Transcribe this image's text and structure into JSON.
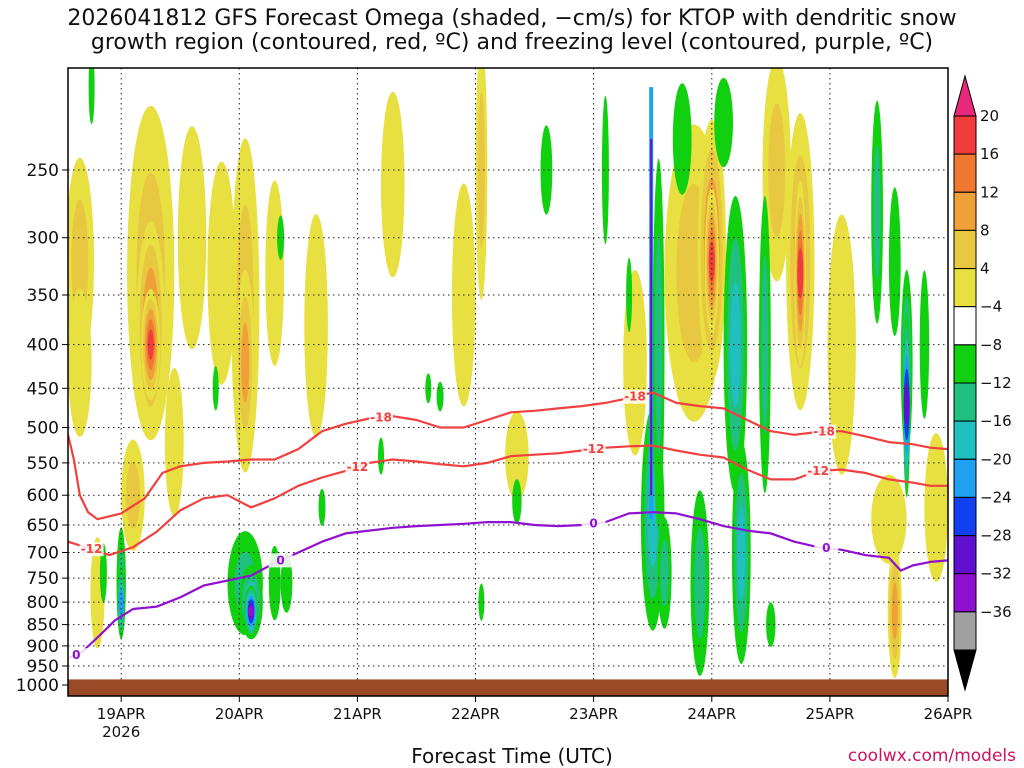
{
  "chart_data": {
    "type": "time-height contour",
    "title_line1": "2026041812 GFS Forecast Omega (shaded, −cm/s) for KTOP with dendritic snow",
    "title_line2": "growth region (contoured, red, ºC) and freezing level (contoured, purple, ºC)",
    "xlabel": "Forecast Time (UTC)",
    "credit": "coolwx.com/models",
    "x_range_days": [
      0.55,
      8.0
    ],
    "y_range_hpa": [
      190,
      1030
    ],
    "y_ticks": [
      "250",
      "300",
      "350",
      "400",
      "450",
      "500",
      "550",
      "600",
      "650",
      "700",
      "750",
      "800",
      "850",
      "900",
      "950",
      "1000"
    ],
    "x_ticks": [
      {
        "label": "19APR",
        "sub": "2026",
        "day": 1
      },
      {
        "label": "20APR",
        "sub": "",
        "day": 2
      },
      {
        "label": "21APR",
        "sub": "",
        "day": 3
      },
      {
        "label": "22APR",
        "sub": "",
        "day": 4
      },
      {
        "label": "23APR",
        "sub": "",
        "day": 5
      },
      {
        "label": "24APR",
        "sub": "",
        "day": 6
      },
      {
        "label": "25APR",
        "sub": "",
        "day": 7
      },
      {
        "label": "26APR",
        "sub": "",
        "day": 8
      }
    ],
    "colorbar": {
      "labels": [
        "20",
        "16",
        "12",
        "8",
        "4",
        "−4",
        "−8",
        "−12",
        "−16",
        "−20",
        "−24",
        "−28",
        "−32",
        "−36"
      ],
      "colors": [
        "#e8287c",
        "#f03c3c",
        "#f07830",
        "#f0a038",
        "#e8c840",
        "#e8e040",
        "#ffffff",
        "#10d010",
        "#20c080",
        "#20c0c0",
        "#20a0f0",
        "#1040f0",
        "#6010d0",
        "#9010d0",
        "#a0a0a0",
        "#000000"
      ]
    },
    "contour_labels": {
      "dgz_top": "-18",
      "dgz_bottom": "-12",
      "freezing": "0"
    },
    "series": [
      {
        "name": "-18C",
        "color": "#f04040",
        "x": [
          0.55,
          0.6,
          0.65,
          0.72,
          0.8,
          1.0,
          1.2,
          1.35,
          1.5,
          1.7,
          1.9,
          2.1,
          2.3,
          2.5,
          2.7,
          2.9,
          3.1,
          3.3,
          3.5,
          3.7,
          3.9,
          4.1,
          4.3,
          4.5,
          4.7,
          4.9,
          5.1,
          5.3,
          5.5,
          5.7,
          5.9,
          6.1,
          6.3,
          6.5,
          6.7,
          6.9,
          7.1,
          7.3,
          7.5,
          7.7,
          7.85,
          8.0
        ],
        "y": [
          510,
          545,
          600,
          628,
          640,
          630,
          605,
          565,
          555,
          550,
          548,
          545,
          545,
          530,
          505,
          495,
          488,
          485,
          490,
          500,
          500,
          490,
          480,
          478,
          475,
          472,
          468,
          462,
          455,
          468,
          472,
          475,
          490,
          505,
          510,
          506,
          505,
          512,
          520,
          523,
          528,
          530
        ]
      },
      {
        "name": "-12C",
        "color": "#f04040",
        "x": [
          0.55,
          0.7,
          0.9,
          1.1,
          1.3,
          1.5,
          1.7,
          1.9,
          2.1,
          2.3,
          2.5,
          2.7,
          2.9,
          3.1,
          3.3,
          3.5,
          3.7,
          3.9,
          4.1,
          4.3,
          4.5,
          4.7,
          4.9,
          5.1,
          5.3,
          5.5,
          5.7,
          5.9,
          6.1,
          6.3,
          6.5,
          6.7,
          6.9,
          7.1,
          7.3,
          7.5,
          7.7,
          7.85,
          8.0
        ],
        "y": [
          680,
          690,
          705,
          690,
          662,
          625,
          605,
          600,
          620,
          605,
          585,
          572,
          562,
          550,
          545,
          548,
          552,
          555,
          550,
          540,
          538,
          536,
          532,
          528,
          526,
          525,
          532,
          538,
          542,
          560,
          575,
          575,
          562,
          560,
          565,
          575,
          580,
          585,
          585
        ]
      },
      {
        "name": "0C",
        "color": "#9010d0",
        "x": [
          0.55,
          0.65,
          0.8,
          0.95,
          1.1,
          1.3,
          1.5,
          1.7,
          1.9,
          2.1,
          2.3,
          2.5,
          2.7,
          2.9,
          3.1,
          3.3,
          3.5,
          3.7,
          3.9,
          4.1,
          4.3,
          4.5,
          4.7,
          4.9,
          5.1,
          5.3,
          5.5,
          5.7,
          5.9,
          6.1,
          6.3,
          6.5,
          6.7,
          6.9,
          7.1,
          7.3,
          7.5,
          7.6,
          7.7,
          7.85,
          8.0
        ],
        "y": [
          930,
          920,
          880,
          840,
          815,
          810,
          790,
          765,
          755,
          745,
          720,
          700,
          680,
          665,
          660,
          655,
          652,
          650,
          648,
          645,
          645,
          650,
          652,
          650,
          645,
          630,
          628,
          630,
          640,
          652,
          660,
          665,
          680,
          690,
          695,
          705,
          710,
          735,
          725,
          718,
          715
        ]
      }
    ]
  }
}
